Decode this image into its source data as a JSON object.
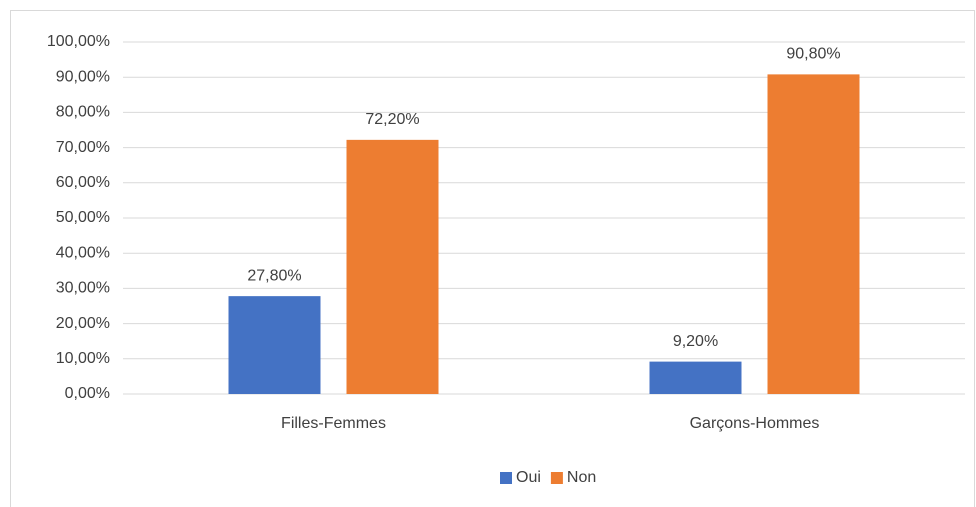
{
  "chart_data": {
    "type": "bar",
    "categories": [
      "Filles-Femmes",
      "Garçons-Hommes"
    ],
    "series": [
      {
        "name": "Oui",
        "color": "#4472c4",
        "values": [
          27.8,
          9.2
        ],
        "value_labels": [
          "27,80%",
          "9,20%"
        ]
      },
      {
        "name": "Non",
        "color": "#ed7d31",
        "values": [
          72.2,
          90.8
        ],
        "value_labels": [
          "72,20%",
          "90,80%"
        ]
      }
    ],
    "ylim": [
      0,
      100
    ],
    "yticks": [
      {
        "value": 0,
        "label": "0,00%"
      },
      {
        "value": 10,
        "label": "10,00%"
      },
      {
        "value": 20,
        "label": "20,00%"
      },
      {
        "value": 30,
        "label": "30,00%"
      },
      {
        "value": 40,
        "label": "40,00%"
      },
      {
        "value": 50,
        "label": "50,00%"
      },
      {
        "value": 60,
        "label": "60,00%"
      },
      {
        "value": 70,
        "label": "70,00%"
      },
      {
        "value": 80,
        "label": "80,00%"
      },
      {
        "value": 90,
        "label": "90,00%"
      },
      {
        "value": 100,
        "label": "100,00%"
      }
    ],
    "grid": true,
    "legend": "bottom"
  }
}
